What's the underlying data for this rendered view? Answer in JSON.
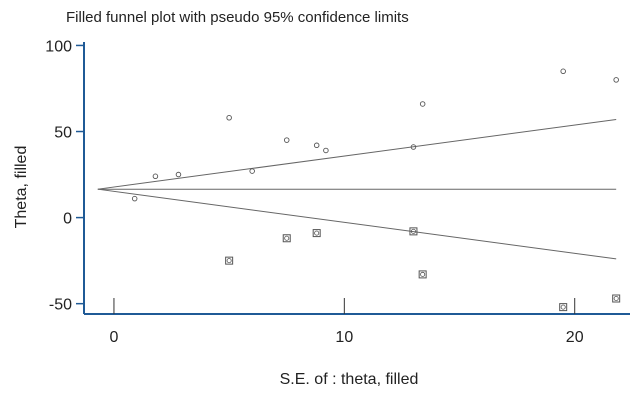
{
  "chart_data": {
    "type": "scatter",
    "title": "Filled funnel plot with pseudo 95% confidence limits",
    "xlabel": "S.E. of : theta, filled",
    "ylabel": "Theta, filled",
    "xlim": [
      -1.3,
      22.4
    ],
    "ylim": [
      -56,
      102
    ],
    "xticks": [
      0,
      10,
      20
    ],
    "yticks": [
      -50,
      0,
      50,
      100
    ],
    "grid": false,
    "colors": {
      "axis": "#1f5a96",
      "marks": "#555555",
      "text": "#222222"
    },
    "series": [
      {
        "marker": "circle",
        "points": [
          {
            "x": 0.9,
            "y": 11
          },
          {
            "x": 1.8,
            "y": 24
          },
          {
            "x": 2.8,
            "y": 25
          },
          {
            "x": 5.0,
            "y": 58
          },
          {
            "x": 6.0,
            "y": 27
          },
          {
            "x": 7.5,
            "y": 45
          },
          {
            "x": 8.8,
            "y": 42
          },
          {
            "x": 9.2,
            "y": 39
          },
          {
            "x": 13.0,
            "y": 41
          },
          {
            "x": 13.4,
            "y": 66
          },
          {
            "x": 19.5,
            "y": 85
          },
          {
            "x": 21.8,
            "y": 80
          }
        ]
      },
      {
        "marker": "square",
        "points": [
          {
            "x": 5.0,
            "y": -25
          },
          {
            "x": 7.5,
            "y": -12
          },
          {
            "x": 8.8,
            "y": -9
          },
          {
            "x": 13.0,
            "y": -8
          },
          {
            "x": 13.4,
            "y": -33
          },
          {
            "x": 19.5,
            "y": -52
          },
          {
            "x": 21.8,
            "y": -47
          }
        ]
      }
    ],
    "reference_lines": [
      {
        "kind": "pooled-estimate",
        "x": [
          -0.7,
          21.8
        ],
        "y": [
          16.5,
          16.5
        ]
      },
      {
        "kind": "upper-limit",
        "x": [
          -0.7,
          21.8
        ],
        "y": [
          16.5,
          57
        ]
      },
      {
        "kind": "lower-limit",
        "x": [
          -0.7,
          21.8
        ],
        "y": [
          16.5,
          -24
        ]
      }
    ]
  }
}
